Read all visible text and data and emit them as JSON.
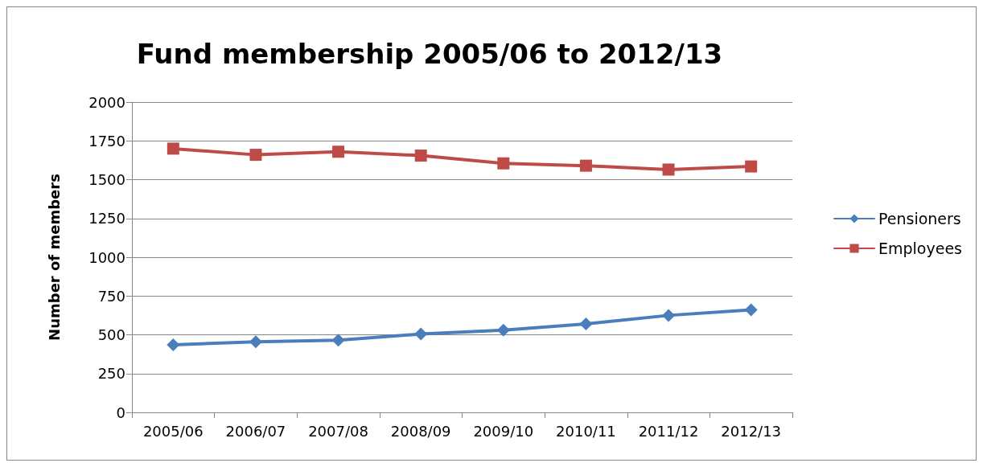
{
  "chart_data": {
    "type": "line",
    "title": "Fund membership 2005/06 to 2012/13",
    "ylabel": "Number of members",
    "categories": [
      "2005/06",
      "2006/07",
      "2007/08",
      "2008/09",
      "2009/10",
      "2010/11",
      "2011/12",
      "2012/13"
    ],
    "series": [
      {
        "name": "Pensioners",
        "color": "#4a7ebb",
        "marker": "diamond",
        "values": [
          435,
          455,
          465,
          505,
          530,
          570,
          625,
          660
        ]
      },
      {
        "name": "Employees",
        "color": "#be4b48",
        "marker": "square",
        "values": [
          1700,
          1660,
          1680,
          1655,
          1605,
          1590,
          1565,
          1585
        ]
      }
    ],
    "ylim": [
      0,
      2000
    ],
    "yticks": [
      0,
      250,
      500,
      750,
      1000,
      1250,
      1500,
      1750,
      2000
    ],
    "grid": "y",
    "legend": "right"
  }
}
